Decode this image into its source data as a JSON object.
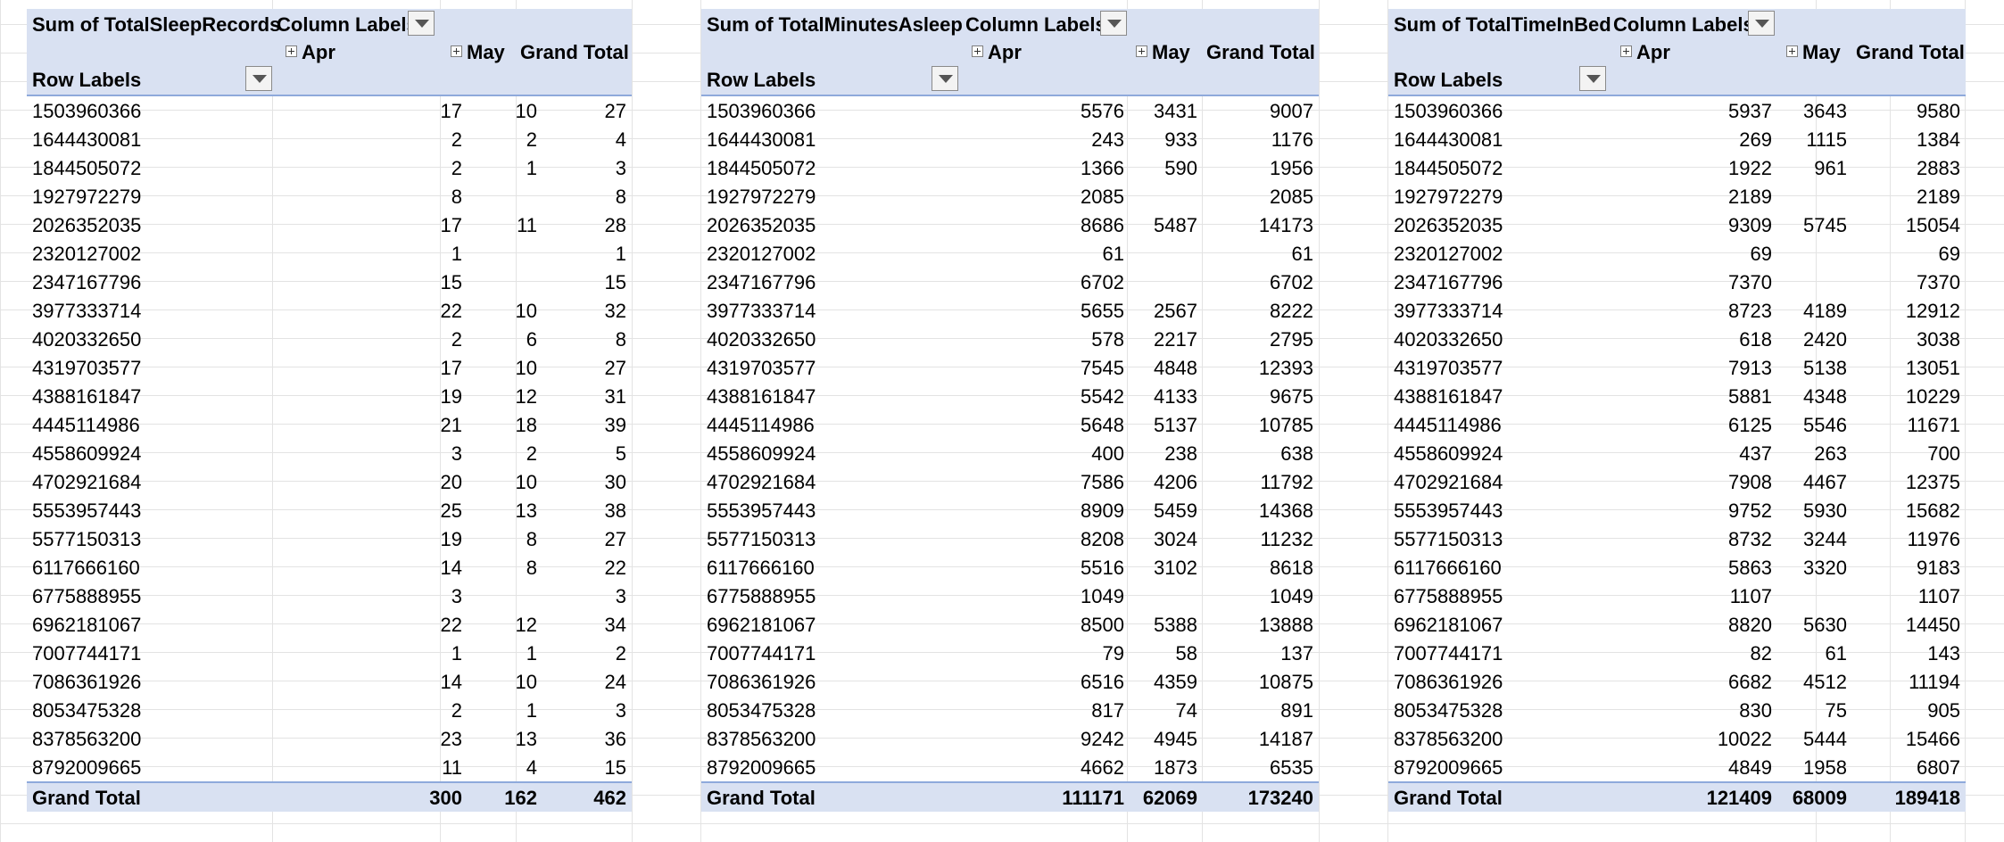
{
  "pivots": [
    {
      "measure": "Sum of TotalSleepRecords",
      "column_labels": "Column Labels",
      "row_labels": "Row Labels",
      "col_apr": "Apr",
      "col_may": "May",
      "col_total": "Grand Total",
      "rows": [
        {
          "id": "1503960366",
          "apr": "17",
          "may": "10",
          "total": "27"
        },
        {
          "id": "1644430081",
          "apr": "2",
          "may": "2",
          "total": "4"
        },
        {
          "id": "1844505072",
          "apr": "2",
          "may": "1",
          "total": "3"
        },
        {
          "id": "1927972279",
          "apr": "8",
          "may": "",
          "total": "8"
        },
        {
          "id": "2026352035",
          "apr": "17",
          "may": "11",
          "total": "28"
        },
        {
          "id": "2320127002",
          "apr": "1",
          "may": "",
          "total": "1"
        },
        {
          "id": "2347167796",
          "apr": "15",
          "may": "",
          "total": "15"
        },
        {
          "id": "3977333714",
          "apr": "22",
          "may": "10",
          "total": "32"
        },
        {
          "id": "4020332650",
          "apr": "2",
          "may": "6",
          "total": "8"
        },
        {
          "id": "4319703577",
          "apr": "17",
          "may": "10",
          "total": "27"
        },
        {
          "id": "4388161847",
          "apr": "19",
          "may": "12",
          "total": "31"
        },
        {
          "id": "4445114986",
          "apr": "21",
          "may": "18",
          "total": "39"
        },
        {
          "id": "4558609924",
          "apr": "3",
          "may": "2",
          "total": "5"
        },
        {
          "id": "4702921684",
          "apr": "20",
          "may": "10",
          "total": "30"
        },
        {
          "id": "5553957443",
          "apr": "25",
          "may": "13",
          "total": "38"
        },
        {
          "id": "5577150313",
          "apr": "19",
          "may": "8",
          "total": "27"
        },
        {
          "id": "6117666160",
          "apr": "14",
          "may": "8",
          "total": "22"
        },
        {
          "id": "6775888955",
          "apr": "3",
          "may": "",
          "total": "3"
        },
        {
          "id": "6962181067",
          "apr": "22",
          "may": "12",
          "total": "34"
        },
        {
          "id": "7007744171",
          "apr": "1",
          "may": "1",
          "total": "2"
        },
        {
          "id": "7086361926",
          "apr": "14",
          "may": "10",
          "total": "24"
        },
        {
          "id": "8053475328",
          "apr": "2",
          "may": "1",
          "total": "3"
        },
        {
          "id": "8378563200",
          "apr": "23",
          "may": "13",
          "total": "36"
        },
        {
          "id": "8792009665",
          "apr": "11",
          "may": "4",
          "total": "15"
        }
      ],
      "grand_total": {
        "label": "Grand Total",
        "apr": "300",
        "may": "162",
        "total": "462"
      }
    },
    {
      "measure": "Sum of TotalMinutesAsleep",
      "column_labels": "Column Labels",
      "row_labels": "Row Labels",
      "col_apr": "Apr",
      "col_may": "May",
      "col_total": "Grand Total",
      "rows": [
        {
          "id": "1503960366",
          "apr": "5576",
          "may": "3431",
          "total": "9007"
        },
        {
          "id": "1644430081",
          "apr": "243",
          "may": "933",
          "total": "1176"
        },
        {
          "id": "1844505072",
          "apr": "1366",
          "may": "590",
          "total": "1956"
        },
        {
          "id": "1927972279",
          "apr": "2085",
          "may": "",
          "total": "2085"
        },
        {
          "id": "2026352035",
          "apr": "8686",
          "may": "5487",
          "total": "14173"
        },
        {
          "id": "2320127002",
          "apr": "61",
          "may": "",
          "total": "61"
        },
        {
          "id": "2347167796",
          "apr": "6702",
          "may": "",
          "total": "6702"
        },
        {
          "id": "3977333714",
          "apr": "5655",
          "may": "2567",
          "total": "8222"
        },
        {
          "id": "4020332650",
          "apr": "578",
          "may": "2217",
          "total": "2795"
        },
        {
          "id": "4319703577",
          "apr": "7545",
          "may": "4848",
          "total": "12393"
        },
        {
          "id": "4388161847",
          "apr": "5542",
          "may": "4133",
          "total": "9675"
        },
        {
          "id": "4445114986",
          "apr": "5648",
          "may": "5137",
          "total": "10785"
        },
        {
          "id": "4558609924",
          "apr": "400",
          "may": "238",
          "total": "638"
        },
        {
          "id": "4702921684",
          "apr": "7586",
          "may": "4206",
          "total": "11792"
        },
        {
          "id": "5553957443",
          "apr": "8909",
          "may": "5459",
          "total": "14368"
        },
        {
          "id": "5577150313",
          "apr": "8208",
          "may": "3024",
          "total": "11232"
        },
        {
          "id": "6117666160",
          "apr": "5516",
          "may": "3102",
          "total": "8618"
        },
        {
          "id": "6775888955",
          "apr": "1049",
          "may": "",
          "total": "1049"
        },
        {
          "id": "6962181067",
          "apr": "8500",
          "may": "5388",
          "total": "13888"
        },
        {
          "id": "7007744171",
          "apr": "79",
          "may": "58",
          "total": "137"
        },
        {
          "id": "7086361926",
          "apr": "6516",
          "may": "4359",
          "total": "10875"
        },
        {
          "id": "8053475328",
          "apr": "817",
          "may": "74",
          "total": "891"
        },
        {
          "id": "8378563200",
          "apr": "9242",
          "may": "4945",
          "total": "14187"
        },
        {
          "id": "8792009665",
          "apr": "4662",
          "may": "1873",
          "total": "6535"
        }
      ],
      "grand_total": {
        "label": "Grand Total",
        "apr": "111171",
        "may": "62069",
        "total": "173240"
      }
    },
    {
      "measure": "Sum of TotalTimeInBed",
      "column_labels": "Column Labels",
      "row_labels": "Row Labels",
      "col_apr": "Apr",
      "col_may": "May",
      "col_total": "Grand Total",
      "rows": [
        {
          "id": "1503960366",
          "apr": "5937",
          "may": "3643",
          "total": "9580"
        },
        {
          "id": "1644430081",
          "apr": "269",
          "may": "1115",
          "total": "1384"
        },
        {
          "id": "1844505072",
          "apr": "1922",
          "may": "961",
          "total": "2883"
        },
        {
          "id": "1927972279",
          "apr": "2189",
          "may": "",
          "total": "2189"
        },
        {
          "id": "2026352035",
          "apr": "9309",
          "may": "5745",
          "total": "15054"
        },
        {
          "id": "2320127002",
          "apr": "69",
          "may": "",
          "total": "69"
        },
        {
          "id": "2347167796",
          "apr": "7370",
          "may": "",
          "total": "7370"
        },
        {
          "id": "3977333714",
          "apr": "8723",
          "may": "4189",
          "total": "12912"
        },
        {
          "id": "4020332650",
          "apr": "618",
          "may": "2420",
          "total": "3038"
        },
        {
          "id": "4319703577",
          "apr": "7913",
          "may": "5138",
          "total": "13051"
        },
        {
          "id": "4388161847",
          "apr": "5881",
          "may": "4348",
          "total": "10229"
        },
        {
          "id": "4445114986",
          "apr": "6125",
          "may": "5546",
          "total": "11671"
        },
        {
          "id": "4558609924",
          "apr": "437",
          "may": "263",
          "total": "700"
        },
        {
          "id": "4702921684",
          "apr": "7908",
          "may": "4467",
          "total": "12375"
        },
        {
          "id": "5553957443",
          "apr": "9752",
          "may": "5930",
          "total": "15682"
        },
        {
          "id": "5577150313",
          "apr": "8732",
          "may": "3244",
          "total": "11976"
        },
        {
          "id": "6117666160",
          "apr": "5863",
          "may": "3320",
          "total": "9183"
        },
        {
          "id": "6775888955",
          "apr": "1107",
          "may": "",
          "total": "1107"
        },
        {
          "id": "6962181067",
          "apr": "8820",
          "may": "5630",
          "total": "14450"
        },
        {
          "id": "7007744171",
          "apr": "82",
          "may": "61",
          "total": "143"
        },
        {
          "id": "7086361926",
          "apr": "6682",
          "may": "4512",
          "total": "11194"
        },
        {
          "id": "8053475328",
          "apr": "830",
          "may": "75",
          "total": "905"
        },
        {
          "id": "8378563200",
          "apr": "10022",
          "may": "5444",
          "total": "15466"
        },
        {
          "id": "8792009665",
          "apr": "4849",
          "may": "1958",
          "total": "6807"
        }
      ],
      "grand_total": {
        "label": "Grand Total",
        "apr": "121409",
        "may": "68009",
        "total": "189418"
      }
    }
  ]
}
